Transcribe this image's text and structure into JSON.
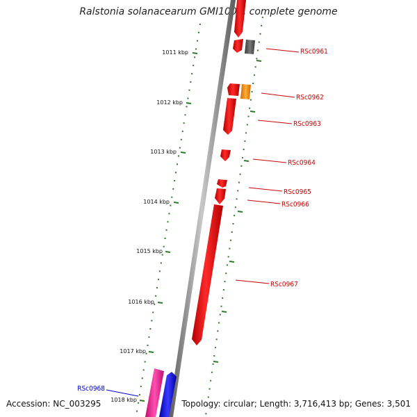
{
  "title": "Ralstonia solanacearum GMI1000, complete genome",
  "footer": {
    "accession": "Accession: NC_003295",
    "summary": "Topology: circular; Length: 3,716,413 bp; Genes: 3,501"
  },
  "kbp_labels": [
    "1011 kbp",
    "1012 kbp",
    "1013 kbp",
    "1014 kbp",
    "1015 kbp",
    "1016 kbp",
    "1017 kbp",
    "1018 kbp"
  ],
  "gene_labels": [
    {
      "text": "RSc0961",
      "color": "#cc0000"
    },
    {
      "text": "RSc0962",
      "color": "#cc0000"
    },
    {
      "text": "RSc0963",
      "color": "#cc0000"
    },
    {
      "text": "RSc0964",
      "color": "#cc0000"
    },
    {
      "text": "RSc0965",
      "color": "#cc0000"
    },
    {
      "text": "RSc0966",
      "color": "#cc0000"
    },
    {
      "text": "RSc0967",
      "color": "#cc0000"
    },
    {
      "text": "RSc0968",
      "color": "#0000cc"
    }
  ],
  "colors": {
    "backbone": "#888888",
    "ticks": "#2a7a2a",
    "gene_red": "#ee0000",
    "gene_gray": "#555555",
    "gene_orange": "#ff8c00",
    "gene_pink": "#ff1493",
    "gene_blue": "#0000ee"
  }
}
